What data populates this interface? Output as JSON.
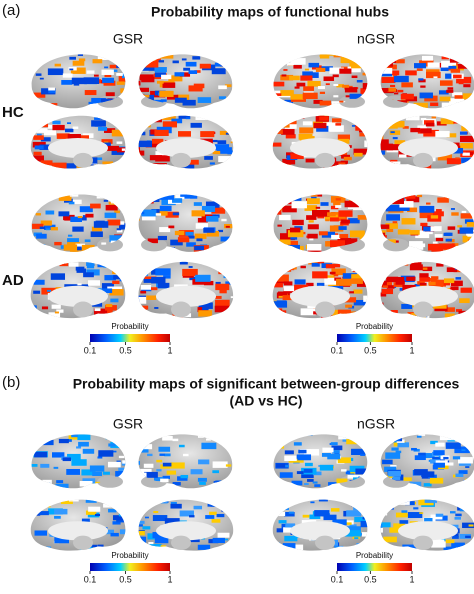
{
  "panel_a": {
    "label": "(a)",
    "title": "Probability maps of functional hubs",
    "columns": [
      "GSR",
      "nGSR"
    ],
    "rows": [
      "HC",
      "AD"
    ],
    "colorbars": [
      {
        "title": "Probability",
        "ticks": [
          0.1,
          0.5,
          1
        ]
      },
      {
        "title": "Probability",
        "ticks": [
          0.1,
          0.5,
          1
        ]
      }
    ]
  },
  "panel_b": {
    "label": "(b)",
    "title": [
      "Probability maps of significant between-group differences",
      "(AD vs HC)"
    ],
    "columns": [
      "GSR",
      "nGSR"
    ],
    "colorbars": [
      {
        "title": "Probability",
        "ticks": [
          0.1,
          0.5,
          1
        ]
      },
      {
        "title": "Probability",
        "ticks": [
          0.1,
          0.5,
          1
        ]
      }
    ]
  }
}
